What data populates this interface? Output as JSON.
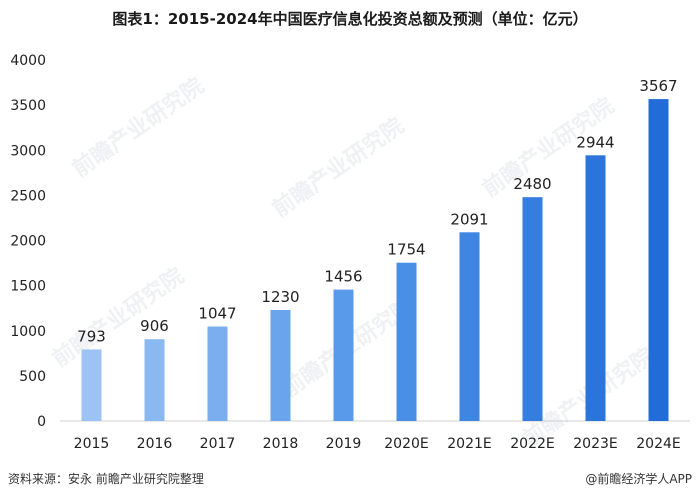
{
  "title": "图表1：2015-2024年中国医疗信息化投资总额及预测（单位：亿元）",
  "footer": {
    "source": "资料来源：安永 前瞻产业研究院整理",
    "brand": "@前瞻经济学人APP"
  },
  "watermark": "前瞻产业研究院",
  "chart_data": {
    "type": "bar",
    "title": "图表1：2015-2024年中国医疗信息化投资总额及预测（单位：亿元）",
    "xlabel": "",
    "ylabel": "",
    "ylim": [
      0,
      4000
    ],
    "yticks": [
      0,
      500,
      1000,
      1500,
      2000,
      2500,
      3000,
      3500,
      4000
    ],
    "grid": false,
    "categories": [
      "2015",
      "2016",
      "2017",
      "2018",
      "2019",
      "2020E",
      "2021E",
      "2022E",
      "2023E",
      "2024E"
    ],
    "values": [
      793,
      906,
      1047,
      1230,
      1456,
      1754,
      2091,
      2480,
      2944,
      3567
    ],
    "colors": [
      "#9cc3f3",
      "#8ab8f1",
      "#7aaeee",
      "#6aa4ec",
      "#5a9aea",
      "#4a8fe6",
      "#3f86e3",
      "#357ddf",
      "#2b74db",
      "#226cd8"
    ]
  }
}
